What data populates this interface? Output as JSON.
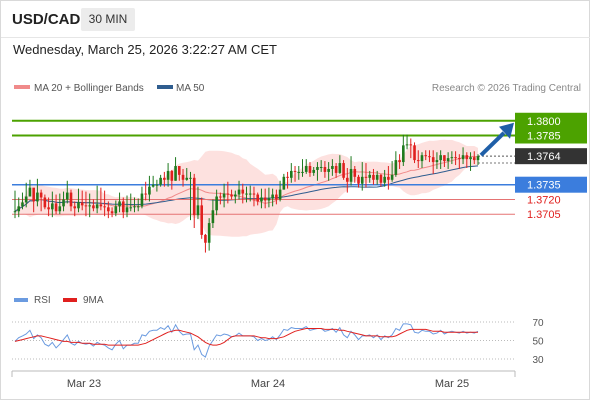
{
  "header": {
    "pair": "USD/CAD",
    "timeframe": "30 MIN",
    "datetime": "Wednesday, March 25, 2026 3:22:27 AM CET"
  },
  "legend": {
    "ma20_label": "MA 20 + Bollinger Bands",
    "ma50_label": "MA 50",
    "copyright": "Research © 2026 Trading Central",
    "rsi_label": "RSI",
    "ma9_label": "9MA"
  },
  "colors": {
    "up": "#1e7a1e",
    "down": "#e0201e",
    "ma20": "#f08a8a",
    "ma50": "#2f5d8f",
    "band_fill": "#fde1df",
    "resistance": "#4ca200",
    "support": "#3b7ddd",
    "minor_level": "#e57373",
    "current": "#333333",
    "arrow": "#1f5fa8",
    "rsi": "#6b9be0",
    "rsi_ma": "#e0201e"
  },
  "chart_data": [
    {
      "type": "candlestick",
      "title": "USD/CAD",
      "timeframe": "30 MIN",
      "x_ticks": [
        "Mar 23",
        "Mar 24",
        "Mar 25"
      ],
      "ylim": [
        1.363,
        1.3815
      ],
      "levels": [
        {
          "value": 1.38,
          "label": "1.3800",
          "kind": "resistance"
        },
        {
          "value": 1.3785,
          "label": "1.3785",
          "kind": "resistance"
        },
        {
          "value": 1.3764,
          "label": "1.3764",
          "kind": "current"
        },
        {
          "value": 1.3735,
          "label": "1.3735",
          "kind": "support"
        },
        {
          "value": 1.372,
          "label": "1.3720",
          "kind": "minor"
        },
        {
          "value": 1.3705,
          "label": "1.3705",
          "kind": "minor"
        }
      ],
      "projection": {
        "from": 1.3764,
        "to": 1.38
      },
      "series": [
        {
          "name": "MA 20 + Bollinger Bands"
        },
        {
          "name": "MA 50"
        }
      ],
      "close": [
        1.3708,
        1.3713,
        1.3717,
        1.3723,
        1.3732,
        1.3718,
        1.3727,
        1.3722,
        1.3712,
        1.371,
        1.3716,
        1.3708,
        1.3713,
        1.372,
        1.3727,
        1.3713,
        1.3711,
        1.3717,
        1.3714,
        1.3713,
        1.3714,
        1.3711,
        1.3715,
        1.3713,
        1.3712,
        1.3708,
        1.3706,
        1.3713,
        1.3718,
        1.3707,
        1.3712,
        1.3712,
        1.3713,
        1.3713,
        1.3726,
        1.3725,
        1.3733,
        1.3735,
        1.3735,
        1.3742,
        1.374,
        1.3749,
        1.3739,
        1.3754,
        1.3745,
        1.374,
        1.3742,
        1.3742,
        1.3704,
        1.3714,
        1.3684,
        1.3676,
        1.3696,
        1.3709,
        1.3723,
        1.3722,
        1.3726,
        1.3725,
        1.3723,
        1.3725,
        1.373,
        1.3726,
        1.3726,
        1.3726,
        1.3725,
        1.3718,
        1.3722,
        1.3719,
        1.3721,
        1.3725,
        1.372,
        1.373,
        1.3743,
        1.3742,
        1.3749,
        1.3748,
        1.3748,
        1.3748,
        1.3754,
        1.3747,
        1.375,
        1.3753,
        1.3753,
        1.3748,
        1.3751,
        1.3754,
        1.3747,
        1.3757,
        1.3742,
        1.3738,
        1.3751,
        1.3743,
        1.3736,
        1.3743,
        1.3742,
        1.3745,
        1.374,
        1.3745,
        1.3737,
        1.3743,
        1.374,
        1.3745,
        1.376,
        1.3758,
        1.3775,
        1.3776,
        1.3775,
        1.376,
        1.3759,
        1.3765,
        1.3764,
        1.3763,
        1.3758,
        1.376,
        1.3765,
        1.3759,
        1.3762,
        1.3763,
        1.3762,
        1.3761,
        1.3765,
        1.3761,
        1.3763,
        1.376,
        1.3764
      ],
      "high": [
        1.3729,
        1.3722,
        1.3727,
        1.3737,
        1.374,
        1.3731,
        1.3741,
        1.373,
        1.3725,
        1.3722,
        1.3728,
        1.3725,
        1.3726,
        1.3728,
        1.3739,
        1.373,
        1.3718,
        1.3731,
        1.3729,
        1.3728,
        1.3726,
        1.372,
        1.3734,
        1.3732,
        1.3729,
        1.3718,
        1.3712,
        1.3719,
        1.3727,
        1.3722,
        1.3724,
        1.3726,
        1.3722,
        1.3721,
        1.3733,
        1.3738,
        1.3744,
        1.3744,
        1.374,
        1.3745,
        1.3748,
        1.3757,
        1.375,
        1.3763,
        1.375,
        1.3751,
        1.3752,
        1.3748,
        1.3746,
        1.3733,
        1.3722,
        1.3685,
        1.3701,
        1.372,
        1.373,
        1.3727,
        1.3736,
        1.3738,
        1.373,
        1.3729,
        1.3739,
        1.3736,
        1.3733,
        1.3734,
        1.3733,
        1.3727,
        1.3731,
        1.3731,
        1.3732,
        1.3731,
        1.373,
        1.3739,
        1.3746,
        1.3748,
        1.3757,
        1.3754,
        1.3754,
        1.3761,
        1.3761,
        1.3758,
        1.3753,
        1.3758,
        1.376,
        1.3759,
        1.3758,
        1.3761,
        1.3757,
        1.3765,
        1.376,
        1.3752,
        1.3764,
        1.3754,
        1.3745,
        1.3758,
        1.3757,
        1.3749,
        1.3751,
        1.3749,
        1.3746,
        1.375,
        1.3754,
        1.3759,
        1.3769,
        1.3766,
        1.3786,
        1.3786,
        1.3782,
        1.3778,
        1.377,
        1.3768,
        1.377,
        1.377,
        1.377,
        1.3768,
        1.377,
        1.3765,
        1.3768,
        1.3769,
        1.3769,
        1.3766,
        1.3773,
        1.3768,
        1.3768,
        1.3769,
        1.3766
      ],
      "low": [
        1.3701,
        1.3702,
        1.371,
        1.3712,
        1.3723,
        1.3707,
        1.3713,
        1.3708,
        1.371,
        1.3703,
        1.3702,
        1.3705,
        1.3705,
        1.3708,
        1.3716,
        1.3708,
        1.3703,
        1.3707,
        1.3709,
        1.3703,
        1.3702,
        1.3708,
        1.3706,
        1.3709,
        1.3703,
        1.3701,
        1.3702,
        1.3703,
        1.3707,
        1.3701,
        1.3702,
        1.3708,
        1.3707,
        1.3708,
        1.3711,
        1.3719,
        1.3718,
        1.3732,
        1.3728,
        1.3733,
        1.3733,
        1.3733,
        1.373,
        1.3739,
        1.3739,
        1.3733,
        1.3739,
        1.3699,
        1.3691,
        1.37,
        1.368,
        1.3666,
        1.3668,
        1.3691,
        1.3704,
        1.3715,
        1.3712,
        1.3716,
        1.372,
        1.3716,
        1.372,
        1.3716,
        1.3717,
        1.3718,
        1.3713,
        1.3714,
        1.3711,
        1.3711,
        1.3712,
        1.3713,
        1.3715,
        1.3718,
        1.373,
        1.3731,
        1.3737,
        1.3738,
        1.374,
        1.3743,
        1.3746,
        1.3743,
        1.3744,
        1.3739,
        1.3748,
        1.3742,
        1.3739,
        1.3744,
        1.3742,
        1.3746,
        1.374,
        1.3727,
        1.3734,
        1.3737,
        1.3732,
        1.3729,
        1.3732,
        1.3737,
        1.3735,
        1.3735,
        1.3733,
        1.3733,
        1.373,
        1.3738,
        1.3743,
        1.3751,
        1.3754,
        1.3771,
        1.3762,
        1.3757,
        1.3752,
        1.3752,
        1.376,
        1.3758,
        1.3746,
        1.3751,
        1.3751,
        1.3753,
        1.3751,
        1.3756,
        1.3755,
        1.3751,
        1.3756,
        1.3752,
        1.3749,
        1.3756,
        1.3755
      ]
    },
    {
      "type": "line",
      "title": "RSI",
      "ylim": [
        30,
        70
      ],
      "y_ticks": [
        70,
        50,
        30
      ],
      "series": [
        {
          "name": "RSI",
          "values": [
            49,
            53,
            55,
            57,
            61,
            52,
            56,
            53,
            46,
            44,
            48,
            42,
            46,
            51,
            56,
            47,
            45,
            49,
            47,
            46,
            47,
            44,
            48,
            46,
            45,
            42,
            40,
            46,
            50,
            41,
            45,
            45,
            47,
            47,
            56,
            55,
            60,
            61,
            61,
            64,
            62,
            66,
            59,
            67,
            60,
            56,
            57,
            57,
            40,
            45,
            35,
            32,
            44,
            50,
            56,
            55,
            57,
            56,
            54,
            55,
            58,
            55,
            55,
            55,
            54,
            50,
            52,
            50,
            51,
            54,
            51,
            56,
            62,
            61,
            64,
            63,
            63,
            63,
            65,
            61,
            62,
            63,
            63,
            60,
            61,
            63,
            59,
            64,
            56,
            53,
            60,
            56,
            51,
            55,
            55,
            56,
            53,
            56,
            51,
            55,
            53,
            56,
            63,
            61,
            68,
            68,
            67,
            59,
            58,
            61,
            60,
            60,
            57,
            58,
            61,
            57,
            59,
            60,
            59,
            58,
            60,
            58,
            59,
            58,
            60
          ]
        },
        {
          "name": "9MA",
          "values": [
            49,
            50,
            51,
            52,
            53,
            54,
            55,
            55,
            54,
            53,
            52,
            51,
            50,
            49,
            49,
            48,
            48,
            48,
            47,
            47,
            47,
            46,
            46,
            46,
            46,
            45,
            45,
            45,
            45,
            45,
            45,
            45,
            45,
            45,
            46,
            47,
            49,
            51,
            53,
            55,
            57,
            59,
            60,
            61,
            61,
            60,
            59,
            58,
            56,
            54,
            51,
            48,
            46,
            45,
            45,
            46,
            48,
            51,
            54,
            55,
            55,
            55,
            55,
            55,
            55,
            54,
            53,
            53,
            52,
            52,
            52,
            53,
            54,
            56,
            58,
            60,
            61,
            62,
            63,
            63,
            63,
            63,
            63,
            62,
            62,
            62,
            62,
            61,
            61,
            60,
            59,
            58,
            57,
            56,
            55,
            55,
            55,
            55,
            54,
            54,
            54,
            54,
            55,
            57,
            59,
            61,
            62,
            62,
            62,
            62,
            62,
            61,
            60,
            60,
            60,
            59,
            59,
            59,
            59,
            59,
            59,
            59,
            59,
            59,
            59
          ]
        }
      ]
    }
  ]
}
